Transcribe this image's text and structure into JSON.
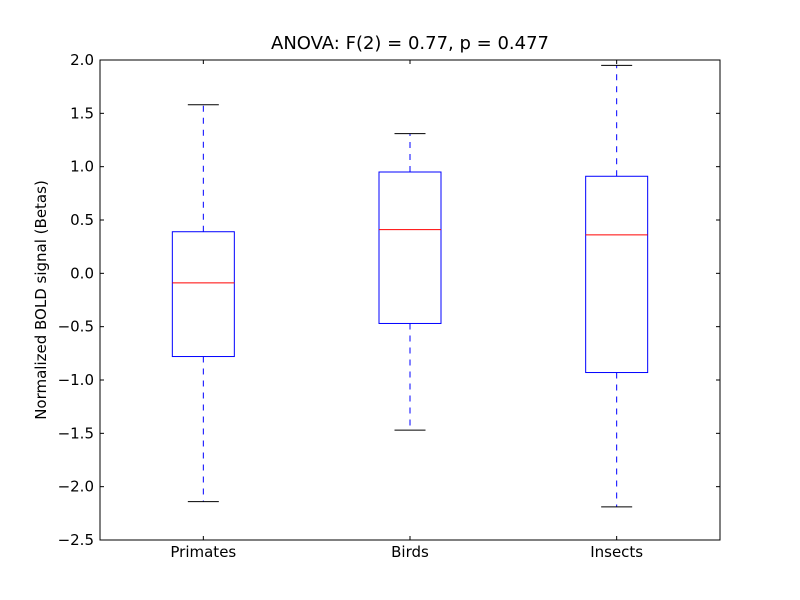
{
  "chart_data": {
    "type": "box",
    "title": "ANOVA: F(2) = 0.77, p = 0.477",
    "xlabel": "",
    "ylabel": "Normalized BOLD signal (Betas)",
    "ylim": [
      -2.5,
      2.0
    ],
    "yticks": [
      -2.5,
      -2.0,
      -1.5,
      -1.0,
      -0.5,
      0.0,
      0.5,
      1.0,
      1.5,
      2.0
    ],
    "ytick_labels": [
      "−2.5",
      "−2.0",
      "−1.5",
      "−1.0",
      "−0.5",
      "0.0",
      "0.5",
      "1.0",
      "1.5",
      "2.0"
    ],
    "categories": [
      "Primates",
      "Birds",
      "Insects"
    ],
    "boxes": [
      {
        "whisker_low": -2.14,
        "q1": -0.78,
        "median": -0.09,
        "q3": 0.39,
        "whisker_high": 1.58
      },
      {
        "whisker_low": -1.47,
        "q1": -0.47,
        "median": 0.41,
        "q3": 0.95,
        "whisker_high": 1.31
      },
      {
        "whisker_low": -2.19,
        "q1": -0.93,
        "median": 0.36,
        "q3": 0.91,
        "whisker_high": 1.95
      }
    ],
    "grid": false,
    "colors": {
      "box": "#0000ff",
      "median": "#ff0000",
      "cap": "#000000"
    }
  }
}
